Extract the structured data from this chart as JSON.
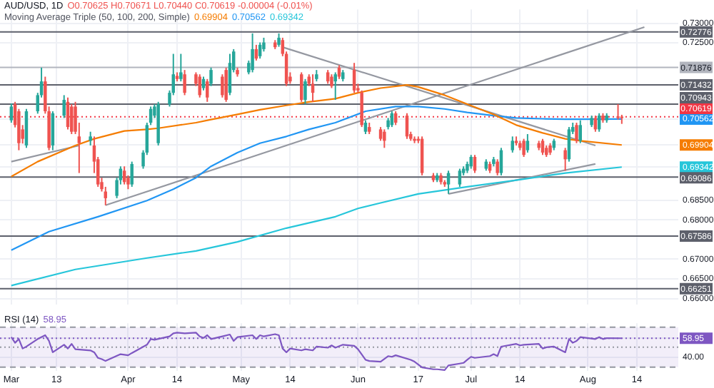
{
  "chart_data": [
    {
      "type": "candlestick",
      "title": "AUD/USD, 1D",
      "subtitle": "O0.70625 H0.70671 L0.70440 C0.70619 -0.00004 (-0.01%)",
      "legend_title": "Moving Average Triple (50, 100, 200, Simple)",
      "annotations": [
        "0.69904",
        "0.70562",
        "0.69342"
      ],
      "x": [
        "--03-01",
        "--03-02",
        "--03-03",
        "--03-04",
        "--03-05",
        "--03-08",
        "--03-09",
        "--03-10",
        "--03-11",
        "--03-12",
        "--03-15",
        "--03-16",
        "--03-17",
        "--03-18",
        "--03-19",
        "--03-22",
        "--03-23",
        "--03-24",
        "--03-25",
        "--03-26",
        "--03-29",
        "--03-30",
        "--03-31",
        "--04-01",
        "--04-02",
        "--04-05",
        "--04-06",
        "--04-07",
        "--04-08",
        "--04-09",
        "--04-12",
        "--04-13",
        "--04-14",
        "--04-15",
        "--04-16",
        "--04-19",
        "--04-20",
        "--04-21",
        "--04-22",
        "--04-23",
        "--04-26",
        "--04-27",
        "--04-28",
        "--04-29",
        "--04-30",
        "--05-03",
        "--05-04",
        "--05-05",
        "--05-06",
        "--05-07",
        "--05-10",
        "--05-11",
        "--05-12",
        "--05-13",
        "--05-14",
        "--05-17",
        "--05-18",
        "--05-19",
        "--05-20",
        "--05-21",
        "--05-24",
        "--05-25",
        "--05-26",
        "--05-27",
        "--05-28",
        "--05-31",
        "--06-01",
        "--06-02",
        "--06-03",
        "--06-04",
        "--06-07",
        "--06-08",
        "--06-09",
        "--06-10",
        "--06-11",
        "--06-14",
        "--06-15",
        "--06-16",
        "--06-17",
        "--06-18",
        "--06-21",
        "--06-22",
        "--06-23",
        "--06-24",
        "--06-25",
        "--06-28",
        "--06-29",
        "--06-30",
        "--07-01",
        "--07-02",
        "--07-05",
        "--07-06",
        "--07-07",
        "--07-08",
        "--07-09",
        "--07-12",
        "--07-13",
        "--07-14",
        "--07-15",
        "--07-16",
        "--07-19",
        "--07-20",
        "--07-21",
        "--07-22",
        "--07-23",
        "--07-26",
        "--07-27",
        "--07-28",
        "--07-29",
        "--07-30",
        "--08-02",
        "--08-03",
        "--08-04",
        "--08-05",
        "--08-06",
        "--08-09",
        "--08-10"
      ],
      "ohlc": [
        [
          0.7053,
          0.7096,
          0.7047,
          0.7088
        ],
        [
          0.7094,
          0.71,
          0.7035,
          0.7041
        ],
        [
          0.7076,
          0.7082,
          0.6977,
          0.6995
        ],
        [
          0.703,
          0.7041,
          0.6994,
          0.7006
        ],
        [
          0.6989,
          0.7082,
          0.6983,
          0.7076
        ],
        [
          0.7076,
          0.7123,
          0.707,
          0.7117
        ],
        [
          0.7117,
          0.7187,
          0.7111,
          0.7152
        ],
        [
          0.7152,
          0.7164,
          0.707,
          0.7076
        ],
        [
          0.7076,
          0.7088,
          0.6977,
          0.6983
        ],
        [
          0.6989,
          0.7076,
          0.6977,
          0.7071
        ],
        [
          0.7065,
          0.7117,
          0.7059,
          0.7105
        ],
        [
          0.71,
          0.7111,
          0.703,
          0.7036
        ],
        [
          0.7088,
          0.7094,
          0.7018,
          0.7024
        ],
        [
          0.7088,
          0.71,
          0.7018,
          0.7024
        ],
        [
          0.7012,
          0.7047,
          0.6919,
          0.6995
        ],
        [
          0.7001,
          0.7024,
          0.6989,
          0.7012
        ],
        [
          0.6989,
          0.7012,
          0.6919,
          0.6948
        ],
        [
          0.6954,
          0.696,
          0.6884,
          0.689
        ],
        [
          0.6896,
          0.6907,
          0.6872,
          0.6878
        ],
        [
          0.6872,
          0.6884,
          0.6837,
          0.6855
        ],
        [
          0.6861,
          0.6907,
          0.6855,
          0.6901
        ],
        [
          0.6901,
          0.6936,
          0.689,
          0.693
        ],
        [
          0.6925,
          0.6936,
          0.689,
          0.6896
        ],
        [
          0.6907,
          0.6913,
          0.6878,
          0.689
        ],
        [
          0.689,
          0.6948,
          0.6884,
          0.6942
        ],
        [
          0.6936,
          0.6977,
          0.693,
          0.6971
        ],
        [
          0.6971,
          0.7047,
          0.6965,
          0.7041
        ],
        [
          0.7047,
          0.7088,
          0.7041,
          0.7082
        ],
        [
          0.7065,
          0.7094,
          0.7059,
          0.7088
        ],
        [
          0.6995,
          0.71,
          0.6989,
          0.7094
        ],
        [
          0.7094,
          0.7129,
          0.7088,
          0.7123
        ],
        [
          0.7123,
          0.7222,
          0.7117,
          0.717
        ],
        [
          0.7166,
          0.7175,
          0.7152,
          0.7158
        ],
        [
          0.7158,
          0.7222,
          0.7152,
          0.7175
        ],
        [
          0.717,
          0.7181,
          0.7117,
          0.7123
        ],
        [
          0.717,
          0.7175,
          0.714,
          0.7146
        ],
        [
          0.7164,
          0.717,
          0.7111,
          0.7117
        ],
        [
          0.7135,
          0.7164,
          0.7129,
          0.7158
        ],
        [
          0.7152,
          0.7158,
          0.71,
          0.7111
        ],
        [
          0.7146,
          0.7187,
          0.714,
          0.7181
        ],
        [
          0.7164,
          0.717,
          0.7111,
          0.7117
        ],
        [
          0.7181,
          0.7187,
          0.71,
          0.7105
        ],
        [
          0.7123,
          0.7222,
          0.7117,
          0.7199
        ],
        [
          0.7181,
          0.7234,
          0.7175,
          0.7228
        ],
        [
          0.7181,
          0.7187,
          0.7164,
          0.717
        ],
        [
          0.7175,
          0.7205,
          0.717,
          0.7199
        ],
        [
          0.7181,
          0.7274,
          0.7175,
          0.7234
        ],
        [
          0.7234,
          0.7245,
          0.7205,
          0.721
        ],
        [
          0.7216,
          0.7251,
          0.721,
          0.7245
        ],
        [
          0.7234,
          0.7263,
          0.7228,
          0.7251
        ],
        [
          0.7251,
          0.7257,
          0.7234,
          0.7239
        ],
        [
          0.7245,
          0.7274,
          0.724,
          0.7263
        ],
        [
          0.7257,
          0.7263,
          0.7216,
          0.7222
        ],
        [
          0.7222,
          0.7228,
          0.714,
          0.7146
        ],
        [
          0.7164,
          0.7175,
          0.7146,
          0.7152
        ],
        [
          0.717,
          0.7175,
          0.71,
          0.7105
        ],
        [
          0.7105,
          0.7158,
          0.7094,
          0.7152
        ],
        [
          0.7164,
          0.717,
          0.714,
          0.7146
        ],
        [
          0.7146,
          0.717,
          0.71,
          0.7123
        ],
        [
          0.7158,
          0.7181,
          0.7152,
          0.717
        ],
        [
          0.7175,
          0.7181,
          0.7146,
          0.7152
        ],
        [
          0.7164,
          0.717,
          0.7135,
          0.714
        ],
        [
          0.7152,
          0.7175,
          0.7105,
          0.717
        ],
        [
          0.7187,
          0.7193,
          0.7158,
          0.7164
        ],
        [
          0.7158,
          0.7181,
          0.7152,
          0.7175
        ],
        [
          0.7181,
          0.7199,
          0.7123,
          0.7129
        ],
        [
          0.7135,
          0.7146,
          0.7123,
          0.7129
        ],
        [
          0.7123,
          0.7129,
          0.7036,
          0.7041
        ],
        [
          0.7024,
          0.7053,
          0.7018,
          0.7047
        ],
        [
          0.7036,
          0.7047,
          0.7018,
          0.7024
        ],
        [
          0.703,
          0.7036,
          0.7001,
          0.7006
        ],
        [
          0.7024,
          0.703,
          0.6983,
          0.7001
        ],
        [
          0.7036,
          0.7059,
          0.703,
          0.7053
        ],
        [
          0.7041,
          0.7076,
          0.7036,
          0.7071
        ],
        [
          0.7071,
          0.7076,
          0.7041,
          0.7047
        ],
        [
          0.7065,
          0.7071,
          0.7006,
          0.7012
        ],
        [
          0.7018,
          0.7024,
          0.7001,
          0.7006
        ],
        [
          0.7006,
          0.7012,
          0.6995,
          0.7001
        ],
        [
          0.7006,
          0.7012,
          0.6995,
          0.7001
        ],
        [
          0.7006,
          0.7012,
          0.6913,
          0.6919
        ],
        [
          0.6913,
          0.6919,
          0.6896,
          0.6901
        ],
        [
          0.6901,
          0.6919,
          0.6896,
          0.6913
        ],
        [
          0.6913,
          0.6919,
          0.689,
          0.6896
        ],
        [
          0.6896,
          0.6901,
          0.6884,
          0.689
        ],
        [
          0.689,
          0.6925,
          0.6866,
          0.6919
        ],
        [
          0.689,
          0.693,
          0.6884,
          0.6925
        ],
        [
          0.6919,
          0.6936,
          0.6913,
          0.693
        ],
        [
          0.6925,
          0.6948,
          0.6919,
          0.6942
        ],
        [
          0.6936,
          0.6965,
          0.693,
          0.696
        ],
        [
          0.696,
          0.6965,
          0.6919,
          0.6925
        ],
        [
          0.693,
          0.6954,
          0.6925,
          0.6948
        ],
        [
          0.6942,
          0.6948,
          0.6919,
          0.6925
        ],
        [
          0.6942,
          0.696,
          0.6936,
          0.6954
        ],
        [
          0.6948,
          0.6954,
          0.6913,
          0.6919
        ],
        [
          0.6919,
          0.6983,
          0.6913,
          0.6977
        ],
        [
          0.6977,
          0.7012,
          0.6971,
          0.7001
        ],
        [
          0.7001,
          0.7012,
          0.6989,
          0.6995
        ],
        [
          0.6995,
          0.7001,
          0.6977,
          0.6983
        ],
        [
          0.7001,
          0.7006,
          0.696,
          0.6965
        ],
        [
          0.6977,
          0.7018,
          0.6971,
          0.7001
        ],
        [
          0.6995,
          0.7001,
          0.6977,
          0.6983
        ],
        [
          0.7001,
          0.7006,
          0.6965,
          0.6971
        ],
        [
          0.6983,
          0.6989,
          0.696,
          0.6965
        ],
        [
          0.6989,
          0.6995,
          0.6965,
          0.6971
        ],
        [
          0.6983,
          0.7006,
          0.6977,
          0.7001
        ],
        [
          0.6977,
          0.6983,
          0.6925,
          0.6954
        ],
        [
          0.6954,
          0.7036,
          0.6948,
          0.703
        ],
        [
          0.7024,
          0.7047,
          0.7018,
          0.7036
        ],
        [
          0.7041,
          0.7047,
          0.6995,
          0.7001
        ],
        [
          0.7001,
          0.7053,
          0.6995,
          0.7041
        ],
        [
          0.7041,
          0.7065,
          0.7036,
          0.7059
        ],
        [
          0.7059,
          0.7065,
          0.7024,
          0.703
        ],
        [
          0.703,
          0.7071,
          0.7024,
          0.7065
        ],
        [
          0.7065,
          0.7071,
          0.7047,
          0.7053
        ],
        [
          0.7053,
          0.7071,
          0.7047,
          0.7065
        ],
        [
          0.7063,
          0.7094,
          0.7055,
          0.7059
        ],
        [
          0.70625,
          0.70671,
          0.7044,
          0.70619
        ]
      ],
      "series": [
        {
          "type": "line",
          "color": "#f57c00",
          "x": [
            "--03-01",
            "--03-08",
            "--03-18",
            "--03-23",
            "--03-31",
            "--04-06",
            "--04-09",
            "--04-19",
            "--04-23",
            "--04-30",
            "--05-06",
            "--05-13",
            "--05-19",
            "--05-26",
            "--06-01",
            "--06-07",
            "--06-14",
            "--06-17",
            "--06-24",
            "--06-30",
            "--07-07",
            "--07-13",
            "--07-20",
            "--07-26",
            "--07-30",
            "--08-10"
          ],
          "values": [
            0.691,
            0.6948,
            0.6989,
            0.7006,
            0.7026,
            0.703,
            0.7033,
            0.7047,
            0.7055,
            0.7068,
            0.708,
            0.7091,
            0.71,
            0.7108,
            0.7123,
            0.7135,
            0.7143,
            0.7138,
            0.7117,
            0.7094,
            0.7068,
            0.7041,
            0.7021,
            0.7006,
            0.7001,
            0.69904
          ]
        },
        {
          "type": "line",
          "color": "#2196f3",
          "x": [
            "--03-01",
            "--03-11",
            "--03-24",
            "--04-06",
            "--04-13",
            "--04-19",
            "--04-23",
            "--04-30",
            "--05-06",
            "--05-13",
            "--05-19",
            "--05-26",
            "--06-03",
            "--06-11",
            "--06-17",
            "--06-24",
            "--06-30",
            "--07-07",
            "--07-13",
            "--07-20",
            "--07-26",
            "--07-30",
            "--08-10"
          ],
          "values": [
            0.6723,
            0.677,
            0.6808,
            0.6849,
            0.6878,
            0.6907,
            0.6936,
            0.6971,
            0.6995,
            0.7012,
            0.703,
            0.7047,
            0.7076,
            0.7088,
            0.7088,
            0.7082,
            0.7073,
            0.7065,
            0.7059,
            0.7057,
            0.7056,
            0.7056,
            0.70562
          ]
        },
        {
          "type": "line",
          "color": "#26c6da",
          "x": [
            "--03-01",
            "--03-18",
            "--04-06",
            "--04-19",
            "--04-30",
            "--05-13",
            "--05-26",
            "--06-01",
            "--06-07",
            "--06-17",
            "--06-30",
            "--07-13",
            "--07-26",
            "--08-10"
          ],
          "values": [
            0.6633,
            0.6674,
            0.6703,
            0.6721,
            0.6744,
            0.6779,
            0.6808,
            0.6829,
            0.6843,
            0.6866,
            0.6884,
            0.6901,
            0.6919,
            0.69342
          ]
        },
        {
          "type": "line",
          "color": "#9598a1",
          "x": [
            "--03-01",
            "--03-19"
          ],
          "values": [
            0.6948,
            0.6989
          ]
        },
        {
          "type": "line",
          "color": "#9598a1",
          "x": [
            "--03-26",
            "--08-16"
          ],
          "values": [
            0.6837,
            0.729
          ]
        },
        {
          "type": "line",
          "color": "#9598a1",
          "x": [
            "--05-12",
            "--08-03"
          ],
          "values": [
            0.7239,
            0.6989
          ]
        },
        {
          "type": "line",
          "color": "#9598a1",
          "x": [
            "--06-25",
            "--08-03"
          ],
          "values": [
            0.6866,
            0.6942
          ]
        }
      ],
      "ref_lines": [
        {
          "axis": "y",
          "value": 0.72776,
          "label": "0.72776",
          "color": "#5d606b"
        },
        {
          "axis": "y",
          "value": 0.71876,
          "label": "0.71876",
          "color": "#b2b5be"
        },
        {
          "axis": "y",
          "value": 0.71432,
          "label": "0.71432",
          "color": "#5d606b"
        },
        {
          "axis": "y",
          "value": 0.70943,
          "label": "0.70943",
          "color": "#5d606b"
        },
        {
          "axis": "y",
          "value": 0.70619,
          "label": "0.70619",
          "color": "#f23645",
          "line_style": "dotted"
        },
        {
          "axis": "y",
          "value": 0.69086,
          "label": "0.69086",
          "color": "#5d606b"
        },
        {
          "axis": "y",
          "value": 0.67586,
          "label": "0.67586",
          "color": "#5d606b"
        },
        {
          "axis": "y",
          "value": 0.66251,
          "label": "0.66251",
          "color": "#5d606b"
        }
      ],
      "xlim": [
        "--02-26",
        "--08-25"
      ],
      "xticks": [
        {
          "value": "--03-01",
          "label": null
        },
        {
          "value": "--03-13",
          "label": null
        },
        {
          "value": "--04-01",
          "label": null
        },
        {
          "value": "--04-14",
          "label": null
        },
        {
          "value": "--05-01",
          "label": null
        },
        {
          "value": "--05-14",
          "label": null
        },
        {
          "value": "--06-01",
          "label": null
        },
        {
          "value": "--06-17",
          "label": null
        },
        {
          "value": "--07-01",
          "label": null
        },
        {
          "value": "--07-14",
          "label": null
        },
        {
          "value": "--08-01",
          "label": null
        },
        {
          "value": "--08-14",
          "label": null
        }
      ],
      "ylim": [
        0.6585,
        0.7335
      ],
      "yticks": [
        {
          "value": 0.73,
          "label": "0.73000"
        },
        {
          "value": 0.725,
          "label": "0.72500"
        },
        0.70562,
        0.69904,
        0.69342,
        {
          "value": 0.685,
          "label": "0.68500"
        },
        {
          "value": 0.68,
          "label": "0.68000"
        },
        {
          "value": 0.67,
          "label": "0.67000"
        },
        {
          "value": 0.665,
          "label": "0.66500"
        },
        {
          "value": 0.66,
          "label": "0.66000"
        }
      ],
      "tick_labels": "y",
      "grid": true,
      "marker": "none"
    },
    {
      "type": "line",
      "title": "RSI (14)",
      "subtitle": "58.95",
      "series": [
        {
          "color": "#7e57c2",
          "x": [
            "--03-01",
            "--03-02",
            "--03-03",
            "--03-04",
            "--03-05",
            "--03-08",
            "--03-10",
            "--03-11",
            "--03-12",
            "--03-15",
            "--03-16",
            "--03-17",
            "--03-18",
            "--03-22",
            "--03-23",
            "--03-24",
            "--03-25",
            "--03-26",
            "--03-30",
            "--04-01",
            "--04-02",
            "--04-06",
            "--04-07",
            "--04-08",
            "--04-12",
            "--04-13",
            "--04-14",
            "--04-16",
            "--04-19",
            "--04-20",
            "--04-21",
            "--04-22",
            "--04-23",
            "--04-26",
            "--04-28",
            "--04-29",
            "--04-30",
            "--05-04",
            "--05-05",
            "--05-06",
            "--05-07",
            "--05-10",
            "--05-11",
            "--05-12",
            "--05-13",
            "--05-14",
            "--05-17",
            "--05-18",
            "--05-20",
            "--05-21",
            "--05-24",
            "--05-25",
            "--05-26",
            "--05-28",
            "--05-31",
            "--06-01",
            "--06-03",
            "--06-04",
            "--06-07",
            "--06-09",
            "--06-10",
            "--06-11",
            "--06-15",
            "--06-16",
            "--06-18",
            "--06-21",
            "--06-22",
            "--06-24",
            "--06-25",
            "--06-28",
            "--06-29",
            "--06-30",
            "--07-01",
            "--07-02",
            "--07-06",
            "--07-07",
            "--07-08",
            "--07-09",
            "--07-13",
            "--07-14",
            "--07-15",
            "--07-19",
            "--07-20",
            "--07-21",
            "--07-23",
            "--07-26",
            "--07-27",
            "--07-28",
            "--07-29",
            "--07-30",
            "--08-03",
            "--08-04",
            "--08-05",
            "--08-06",
            "--08-10"
          ],
          "values": [
            60.1,
            54.4,
            58.2,
            48.7,
            50.6,
            58.2,
            62.0,
            56.3,
            44.9,
            52.5,
            48.7,
            53.3,
            48.0,
            46.8,
            44.9,
            39.3,
            38.1,
            36.2,
            43.0,
            41.9,
            44.2,
            52.5,
            58.2,
            57.4,
            60.8,
            63.9,
            64.6,
            63.9,
            64.6,
            60.8,
            59.3,
            62.0,
            58.2,
            60.8,
            62.7,
            56.3,
            60.1,
            62.0,
            58.2,
            62.0,
            60.8,
            63.1,
            62.0,
            48.7,
            44.9,
            48.7,
            46.8,
            48.0,
            46.8,
            50.6,
            49.5,
            51.8,
            49.5,
            52.5,
            51.4,
            48.0,
            37.4,
            36.2,
            35.5,
            41.1,
            40.4,
            41.9,
            37.4,
            35.5,
            29.8,
            27.9,
            27.9,
            27.1,
            31.7,
            33.6,
            34.3,
            37.4,
            40.4,
            39.3,
            41.1,
            43.0,
            41.1,
            50.6,
            53.3,
            51.8,
            52.5,
            53.3,
            48.7,
            49.9,
            50.6,
            44.9,
            58.2,
            54.4,
            56.3,
            60.1,
            58.2,
            60.1,
            58.2,
            59.0,
            58.95
          ]
        }
      ],
      "bands": [
        {
          "axis": "y",
          "from": 30,
          "to": 70,
          "color": "#7e57c2"
        }
      ],
      "ref_lines": [
        {
          "axis": "y",
          "value": 70,
          "color": "#9598a1",
          "line_style": "dashed"
        },
        {
          "axis": "y",
          "value": 30,
          "color": "#9598a1",
          "line_style": "dashed"
        },
        {
          "axis": "y",
          "value": 50,
          "color": "#9598a1",
          "line_style": "dotted"
        },
        {
          "axis": "y",
          "value": 58.95,
          "color": "#7e57c2",
          "line_style": "dotted"
        }
      ],
      "xlim": [
        "--02-26",
        "--08-25"
      ],
      "xticks": [
        {
          "value": "--03-01",
          "label": "Mar"
        },
        {
          "value": "--03-13",
          "label": "13"
        },
        {
          "value": "--04-01",
          "label": "Apr"
        },
        {
          "value": "--04-14",
          "label": "14"
        },
        {
          "value": "--05-01",
          "label": "May"
        },
        {
          "value": "--05-14",
          "label": "14"
        },
        {
          "value": "--06-01",
          "label": "Jun"
        },
        {
          "value": "--06-17",
          "label": "17"
        },
        {
          "value": "--07-01",
          "label": "Jul"
        },
        {
          "value": "--07-14",
          "label": "14"
        },
        {
          "value": "--08-01",
          "label": "Aug"
        },
        {
          "value": "--08-14",
          "label": "14"
        }
      ],
      "ylim": [
        26,
        74
      ],
      "yticks": [
        58.95,
        {
          "value": 40,
          "label": "40.00"
        }
      ],
      "grid": true,
      "marker": "none"
    }
  ]
}
